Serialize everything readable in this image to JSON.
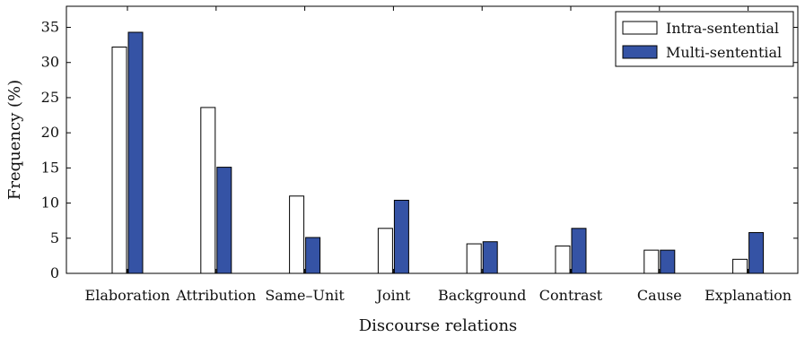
{
  "chart_data": {
    "type": "bar",
    "title": "",
    "xlabel": "Discourse relations",
    "ylabel": "Frequency (%)",
    "ylim": [
      0,
      38
    ],
    "yticks": [
      0,
      5,
      10,
      15,
      20,
      25,
      30,
      35
    ],
    "grid": false,
    "legend_position": "top-right",
    "categories": [
      "Elaboration",
      "Attribution",
      "Same–Unit",
      "Joint",
      "Background",
      "Contrast",
      "Cause",
      "Explanation"
    ],
    "series": [
      {
        "name": "Intra-sentential",
        "fill": "#ffffff",
        "values": [
          32.2,
          23.6,
          11.0,
          6.4,
          4.2,
          3.9,
          3.3,
          2.0
        ]
      },
      {
        "name": "Multi-sentential",
        "fill": "#3553a5",
        "values": [
          34.3,
          15.1,
          5.1,
          10.4,
          4.5,
          6.4,
          3.3,
          5.8
        ]
      }
    ]
  }
}
